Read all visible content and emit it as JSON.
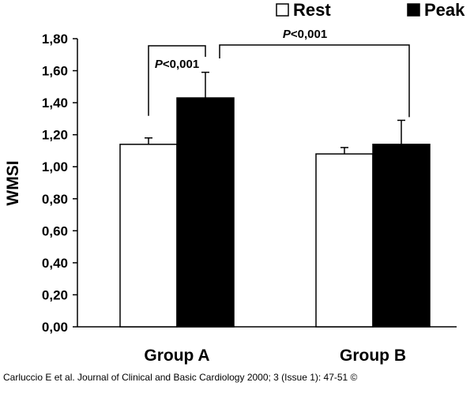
{
  "chart_data": {
    "type": "bar",
    "title": "",
    "xlabel": "",
    "ylabel": "WMSI",
    "ylim": [
      0,
      1.8
    ],
    "yticks": [
      "0,00",
      "0,20",
      "0,40",
      "0,60",
      "0,80",
      "1,00",
      "1,20",
      "1,40",
      "1,60",
      "1,80"
    ],
    "categories": [
      "Group A",
      "Group B"
    ],
    "series": [
      {
        "name": "Rest",
        "color": "#ffffff",
        "values": [
          1.14,
          1.08
        ],
        "errors": [
          0.04,
          0.04
        ]
      },
      {
        "name": "Peak",
        "color": "#000000",
        "values": [
          1.43,
          1.14
        ],
        "errors": [
          0.16,
          0.15
        ]
      }
    ],
    "annotations": [
      {
        "p_label": "P",
        "text": "<0,001",
        "between": "Group A Rest vs Group A Peak"
      },
      {
        "p_label": "P",
        "text": "<0,001",
        "between": "Group A Peak vs Group B Peak"
      }
    ],
    "legend": {
      "placement": "top-right"
    },
    "grid": false
  },
  "caption": "Carluccio E et al. Journal of Clinical and Basic Cardiology 2000; 3 (Issue 1): 47-51 ©"
}
